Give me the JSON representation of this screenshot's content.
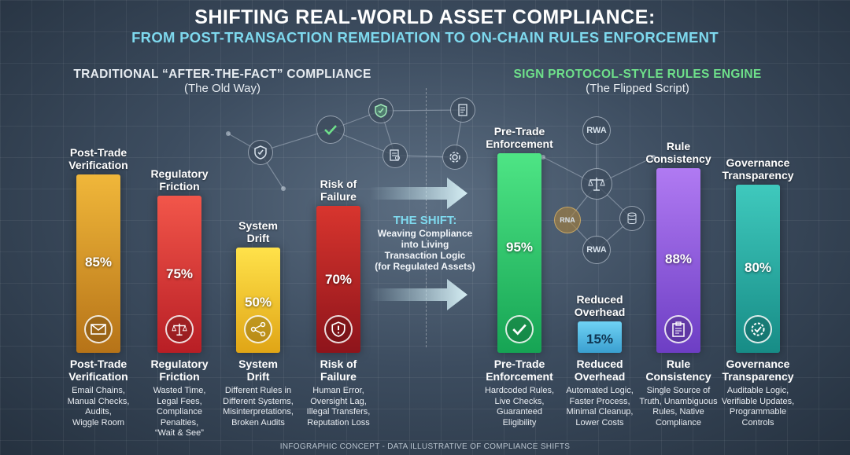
{
  "header": {
    "title": "SHIFTING REAL-WORLD ASSET COMPLIANCE:",
    "subtitle": "FROM POST-TRANSACTION REMEDIATION TO ON-CHAIN RULES ENFORCEMENT"
  },
  "left_section": {
    "title": "TRADITIONAL “AFTER-THE-FACT” COMPLIANCE",
    "subtitle": "(The Old Way)"
  },
  "right_section": {
    "title": "SIGN PROTOCOL-STYLE RULES ENGINE",
    "subtitle": "(The Flipped Script)"
  },
  "shift": {
    "title": "THE SHIFT:",
    "desc_lines": [
      "Weaving Compliance",
      "into Living",
      "Transaction Logic",
      "(for Regulated Assets)"
    ]
  },
  "network_labels": {
    "rwa_top": "RWA",
    "rwa_bottom": "RWA",
    "rna": "RNA"
  },
  "footer": "INFOGRAPHIC CONCEPT - DATA ILLUSTRATIVE OF COMPLIANCE SHIFTS",
  "colors": {
    "accent_cyan": "#7ed9ee",
    "accent_green": "#6ee08a"
  },
  "chart_data": {
    "type": "bar",
    "ylim": [
      0,
      100
    ],
    "categories": [
      "Post-Trade Verification",
      "Regulatory Friction",
      "System Drift",
      "Risk of Failure",
      "Pre-Trade Enforcement",
      "Reduced Overhead",
      "Rule Consistency",
      "Governance Transparency"
    ],
    "values": [
      85,
      75,
      50,
      70,
      95,
      15,
      88,
      80
    ],
    "value_labels": [
      "85%",
      "75%",
      "50%",
      "70%",
      "95%",
      "15%",
      "88%",
      "80%"
    ],
    "label_lines": [
      [
        "Post-Trade",
        "Verification"
      ],
      [
        "Regulatory",
        "Friction"
      ],
      [
        "System",
        "Drift"
      ],
      [
        "Risk of",
        "Failure"
      ],
      [
        "Pre-Trade",
        "Enforcement"
      ],
      [
        "Reduced",
        "Overhead"
      ],
      [
        "Rule",
        "Consistency"
      ],
      [
        "Governance",
        "Transparency"
      ]
    ],
    "descriptions": [
      [
        "Email Chains,",
        "Manual Checks,",
        "Audits,",
        "Wiggle Room"
      ],
      [
        "Wasted Time,",
        "Legal Fees,",
        "Compliance",
        "Penalties,",
        "“Wait & See”"
      ],
      [
        "Different Rules in",
        "Different Systems,",
        "Misinterpretations,",
        "Broken Audits"
      ],
      [
        "Human Error,",
        "Oversight Lag,",
        "Illegal Transfers,",
        "Reputation Loss"
      ],
      [
        "Hardcoded Rules,",
        "Live Checks,",
        "Guaranteed",
        "Eligibility"
      ],
      [
        "Automated Logic,",
        "Faster Process,",
        "Minimal Cleanup,",
        "Lower Costs"
      ],
      [
        "Single Source of",
        "Truth, Unambiguous",
        "Rules, Native",
        "Compliance"
      ],
      [
        "Auditable Logic,",
        "Verifiable Updates,",
        "Programmable",
        "Controls"
      ]
    ],
    "icons": [
      "envelope-icon",
      "scales-icon",
      "network-icon",
      "alert-shield-icon",
      "checkmark-icon",
      "none",
      "clipboard-icon",
      "gear-check-icon"
    ],
    "groups": [
      "Traditional",
      "Traditional",
      "Traditional",
      "Traditional",
      "Rules Engine",
      "Rules Engine",
      "Rules Engine",
      "Rules Engine"
    ],
    "bar_colors": [
      [
        "#f0b73a",
        "#b67318"
      ],
      [
        "#f2564a",
        "#b81e25"
      ],
      [
        "#ffe24a",
        "#e0a516"
      ],
      [
        "#d8352e",
        "#8e141b"
      ],
      [
        "#4ee585",
        "#16a454"
      ],
      [
        "#6fd2f4",
        "#3a9fd0"
      ],
      [
        "#b07af2",
        "#6d3ec4"
      ],
      [
        "#3fc9bd",
        "#178c86"
      ]
    ]
  }
}
